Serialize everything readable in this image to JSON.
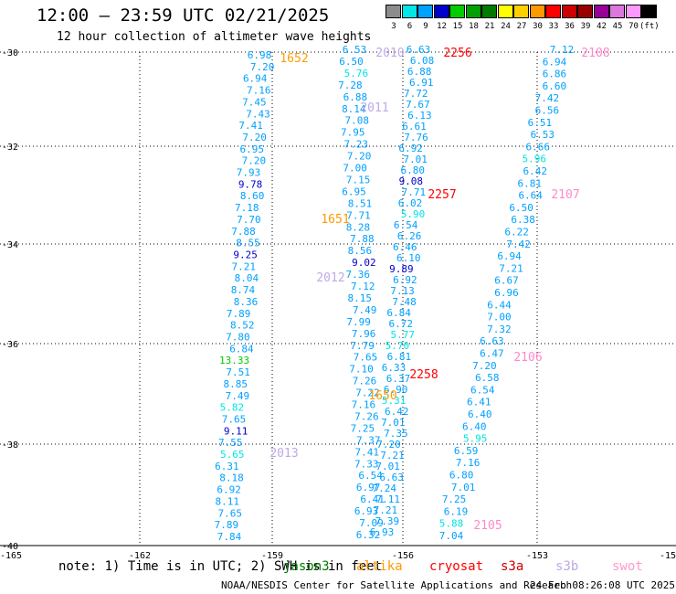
{
  "header": {
    "title": "12:00 – 23:59 UTC 02/21/2025",
    "subtitle": "12 hour collection of altimeter wave heights"
  },
  "color_scale": {
    "unit_label": "(ft)",
    "bins": [
      {
        "label": "3",
        "color": "#8c8c8c"
      },
      {
        "label": "6",
        "color": "#00e5e5"
      },
      {
        "label": "9",
        "color": "#00a0ff"
      },
      {
        "label": "12",
        "color": "#0000cc"
      },
      {
        "label": "15",
        "color": "#00cc00"
      },
      {
        "label": "18",
        "color": "#00a000"
      },
      {
        "label": "21",
        "color": "#007a00"
      },
      {
        "label": "24",
        "color": "#ffff00"
      },
      {
        "label": "27",
        "color": "#ffd000"
      },
      {
        "label": "30",
        "color": "#ff9900"
      },
      {
        "label": "33",
        "color": "#ff0000"
      },
      {
        "label": "36",
        "color": "#cc0000"
      },
      {
        "label": "39",
        "color": "#990000"
      },
      {
        "label": "42",
        "color": "#990099"
      },
      {
        "label": "45",
        "color": "#dd77dd"
      },
      {
        "label": "70",
        "color": "#ff99ff"
      },
      {
        "label": "",
        "color": "#000000"
      }
    ]
  },
  "map": {
    "lat_labels": [
      "-30",
      "-32",
      "-34",
      "-36",
      "-38",
      "-40"
    ],
    "lon_labels": [
      "-165",
      "-162",
      "-159",
      "-156",
      "-153",
      "-15"
    ],
    "tracks": [
      {
        "mission": "jason3",
        "color": "#00a0ff",
        "values": [
          "6.98",
          "7.20",
          "6.94",
          "7.16",
          "7.45",
          "7.43",
          "7.41",
          "7.20",
          "6.95",
          "7.20",
          "7.93",
          "9.78",
          "8.60",
          "7.18",
          "7.70",
          "7.88",
          "8.55",
          "9.25",
          "7.21",
          "8.04",
          "8.74",
          "8.36",
          "7.89",
          "8.52",
          "7.80",
          "6.84",
          "13.33",
          "7.51",
          "8.85",
          "7.49",
          "5.82",
          "7.65",
          "9.11",
          "7.55",
          "5.65",
          "6.31",
          "8.18",
          "6.92",
          "8.11",
          "7.65",
          "7.89",
          "7.84"
        ]
      },
      {
        "mission": "altika",
        "color": "#00a0ff",
        "values": [
          "6.53",
          "6.50",
          "5.76",
          "7.28",
          "6.88",
          "8.14",
          "7.08",
          "7.95",
          "7.23",
          "7.20",
          "7.00",
          "7.15",
          "6.95",
          "8.51",
          "7.71",
          "8.28",
          "7.88",
          "8.56",
          "9.02",
          "7.36",
          "7.12",
          "8.15",
          "7.49",
          "7.99",
          "7.96",
          "7.79",
          "7.65",
          "7.10",
          "7.26",
          "7.22",
          "7.16",
          "7.26",
          "7.25",
          "7.37",
          "7.41",
          "7.33",
          "6.54",
          "6.97",
          "6.41",
          "6.93",
          "7.09",
          "6.32"
        ]
      },
      {
        "mission": "cryosat",
        "color": "#00a0ff",
        "values": [
          "6.63",
          "6.08",
          "6.88",
          "6.91",
          "7.72",
          "7.67",
          "6.13",
          "6.61",
          "7.76",
          "6.92",
          "7.01",
          "6.80",
          "9.08",
          "7.71",
          "6.02",
          "5.90",
          "6.54",
          "6.26",
          "6.46",
          "6.10",
          "9.89",
          "6.92",
          "7.13",
          "7.48",
          "6.84",
          "6.72",
          "5.77",
          "5.70",
          "6.81",
          "6.33",
          "6.37",
          "6.90",
          "5.31",
          "6.42",
          "7.01",
          "7.35",
          "7.20",
          "7.21",
          "7.01",
          "6.63",
          "7.24",
          "7.11",
          "7.21",
          "7.39",
          "6.93"
        ]
      },
      {
        "mission": "s3b",
        "color": "#00a0ff",
        "values": [
          "7.12",
          "6.94",
          "6.86",
          "6.60",
          "7.42",
          "6.56",
          "6.51",
          "6.53",
          "6.66",
          "5.96",
          "6.42",
          "6.81",
          "6.64",
          "6.50",
          "6.38",
          "6.22",
          "7.42",
          "6.94",
          "7.21",
          "6.67",
          "6.96",
          "6.44",
          "7.00",
          "7.32",
          "6.63",
          "6.47",
          "7.20",
          "6.58",
          "6.54",
          "6.41",
          "6.40",
          "6.40",
          "5.95",
          "6.59",
          "7.16",
          "6.80",
          "7.01",
          "7.25",
          "6.19",
          "5.88",
          "7.04"
        ]
      }
    ],
    "time_labels": [
      {
        "text": "1652",
        "color": "#ff9900"
      },
      {
        "text": "2010",
        "color": "#c0a8e8"
      },
      {
        "text": "2256",
        "color": "#ff0000"
      },
      {
        "text": "2108",
        "color": "#ff88cc"
      },
      {
        "text": "2011",
        "color": "#c0a8e8"
      },
      {
        "text": "2257",
        "color": "#ff0000"
      },
      {
        "text": "2107",
        "color": "#ff88cc"
      },
      {
        "text": "1651",
        "color": "#ff9900"
      },
      {
        "text": "2012",
        "color": "#c0a8e8"
      },
      {
        "text": "2106",
        "color": "#ff88cc"
      },
      {
        "text": "2258",
        "color": "#ff0000"
      },
      {
        "text": "1650",
        "color": "#ff9900"
      },
      {
        "text": "2013",
        "color": "#c0a8e8"
      },
      {
        "text": "2105",
        "color": "#ff88cc"
      }
    ]
  },
  "footer": {
    "note": "note: 1) Time is in UTC; 2) SWH is in feet",
    "missions": [
      {
        "label": "jason3",
        "color": "#007a00"
      },
      {
        "label": "altika",
        "color": "#ff9900"
      },
      {
        "label": "cryosat",
        "color": "#ff0000"
      },
      {
        "label": "s3a",
        "color": "#cc0000"
      },
      {
        "label": "s3b",
        "color": "#c0a8e8"
      },
      {
        "label": "swot",
        "color": "#ff99cc"
      }
    ],
    "credit": "NOAA/NESDIS Center for Satellite Applications and Research",
    "timestamp": "24 Feb 08:26:08 UTC 2025"
  }
}
